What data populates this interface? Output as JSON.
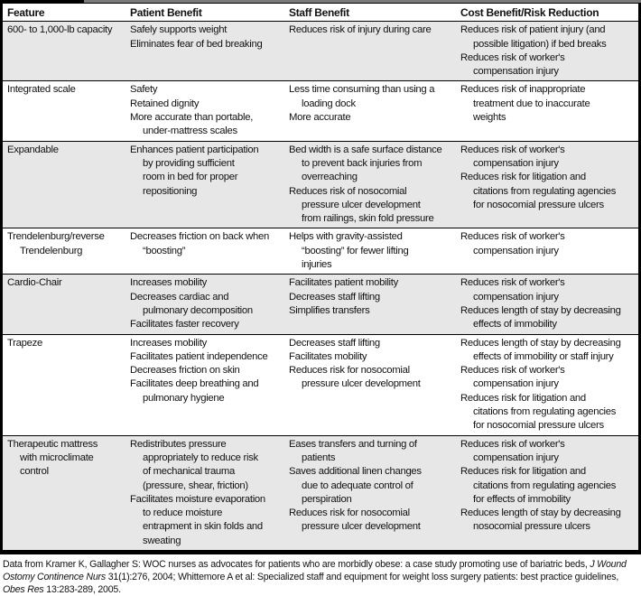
{
  "headers": [
    "Feature",
    "Patient Benefit",
    "Staff Benefit",
    "Cost Benefit/Risk Reduction"
  ],
  "rows": [
    {
      "feature": [
        [
          "600- to 1,000-lb capacity"
        ]
      ],
      "patient": [
        [
          "Safely supports weight"
        ],
        [
          "Eliminates fear of bed breaking"
        ]
      ],
      "staff": [
        [
          "Reduces risk of injury during care"
        ]
      ],
      "cost": [
        [
          "Reduces risk of patient injury (and",
          "possible litigation) if bed breaks"
        ],
        [
          "Reduces risk of worker's",
          "compensation injury"
        ]
      ]
    },
    {
      "feature": [
        [
          "Integrated scale"
        ]
      ],
      "patient": [
        [
          "Safety"
        ],
        [
          "Retained dignity"
        ],
        [
          "More accurate than portable,",
          "under-mattress scales"
        ]
      ],
      "staff": [
        [
          "Less time consuming than using a",
          "loading dock"
        ],
        [
          "More accurate"
        ]
      ],
      "cost": [
        [
          "Reduces risk of inappropriate",
          "treatment due to inaccurate",
          "weights"
        ]
      ]
    },
    {
      "feature": [
        [
          "Expandable"
        ]
      ],
      "patient": [
        [
          "Enhances patient participation",
          "by providing sufficient",
          "room in bed for proper",
          "repositioning"
        ]
      ],
      "staff": [
        [
          "Bed width is a safe surface distance",
          "to prevent back injuries from",
          "overreaching"
        ],
        [
          "Reduces risk of nosocomial",
          "pressure ulcer development",
          "from railings, skin fold pressure"
        ]
      ],
      "cost": [
        [
          "Reduces risk of worker's",
          "compensation injury"
        ],
        [
          "Reduces risk for litigation and",
          "citations from regulating agencies",
          "for nosocomial pressure ulcers"
        ]
      ]
    },
    {
      "feature": [
        [
          "Trendelenburg/reverse",
          "Trendelenburg"
        ]
      ],
      "patient": [
        [
          "Decreases friction on back when",
          "“boosting”"
        ]
      ],
      "staff": [
        [
          "Helps with gravity-assisted",
          "“boosting” for fewer lifting",
          "injuries"
        ]
      ],
      "cost": [
        [
          "Reduces risk of worker's",
          "compensation injury"
        ]
      ]
    },
    {
      "feature": [
        [
          "Cardio-Chair"
        ]
      ],
      "patient": [
        [
          "Increases mobility"
        ],
        [
          "Decreases cardiac and",
          "pulmonary decomposition"
        ],
        [
          "Facilitates faster recovery"
        ]
      ],
      "staff": [
        [
          "Facilitates patient mobility"
        ],
        [
          "Decreases staff lifting"
        ],
        [
          "Simplifies transfers"
        ]
      ],
      "cost": [
        [
          "Reduces risk of worker's",
          "compensation injury"
        ],
        [
          "Reduces length of stay by decreasing",
          "effects of immobility"
        ]
      ]
    },
    {
      "feature": [
        [
          "Trapeze"
        ]
      ],
      "patient": [
        [
          "Increases mobility"
        ],
        [
          "Facilitates patient independence"
        ],
        [
          "Decreases friction on skin"
        ],
        [
          "Facilitates deep breathing and",
          "pulmonary hygiene"
        ]
      ],
      "staff": [
        [
          "Decreases staff lifting"
        ],
        [
          "Facilitates mobility"
        ],
        [
          "Reduces risk for nosocomial",
          "pressure ulcer development"
        ]
      ],
      "cost": [
        [
          "Reduces length of stay by decreasing",
          "effects of immobility or staff injury"
        ],
        [
          "Reduces risk of worker's",
          "compensation injury"
        ],
        [
          "Reduces risk for litigation and",
          "citations from regulating agencies",
          "for nosocomial pressure ulcers"
        ]
      ]
    },
    {
      "feature": [
        [
          "Therapeutic mattress",
          "with microclimate",
          "control"
        ]
      ],
      "patient": [
        [
          "Redistributes pressure",
          "appropriately to reduce risk",
          "of mechanical trauma",
          "(pressure, shear, friction)"
        ],
        [
          "Facilitates moisture evaporation",
          "to reduce moisture",
          "entrapment in skin folds and",
          "sweating"
        ]
      ],
      "staff": [
        [
          "Eases transfers and turning of",
          "patients"
        ],
        [
          "Saves additional linen changes",
          "due to adequate control of",
          "perspiration"
        ],
        [
          "Reduces risk for nosocomial",
          "pressure ulcer development"
        ]
      ],
      "cost": [
        [
          "Reduces risk of worker's",
          "compensation injury"
        ],
        [
          "Reduces risk for litigation and",
          "citations from regulating agencies",
          "for effects of immobility"
        ],
        [
          "Reduces length of stay by decreasing",
          "nosocomial pressure ulcers"
        ]
      ]
    }
  ],
  "footnote": [
    {
      "text": "Data from Kramer K, Gallagher S: WOC nurses as advocates for patients who are morbidly obese: a case study promoting use of bariatric beds, ",
      "italic": false
    },
    {
      "text": "J Wound Ostomy Continence Nurs",
      "italic": true
    },
    {
      "text": " 31(1):276, 2004; Whittemore A et al: Specialized staff and equipment for weight loss surgery patients: best practice guidelines, ",
      "italic": false
    },
    {
      "text": "Obes Res",
      "italic": true
    },
    {
      "text": " 13:283-289, 2005.",
      "italic": false
    }
  ],
  "colors": {
    "row_shade": "#e7e7e7",
    "border": "#000000",
    "top_bar_gray": "#7a7a7a"
  }
}
